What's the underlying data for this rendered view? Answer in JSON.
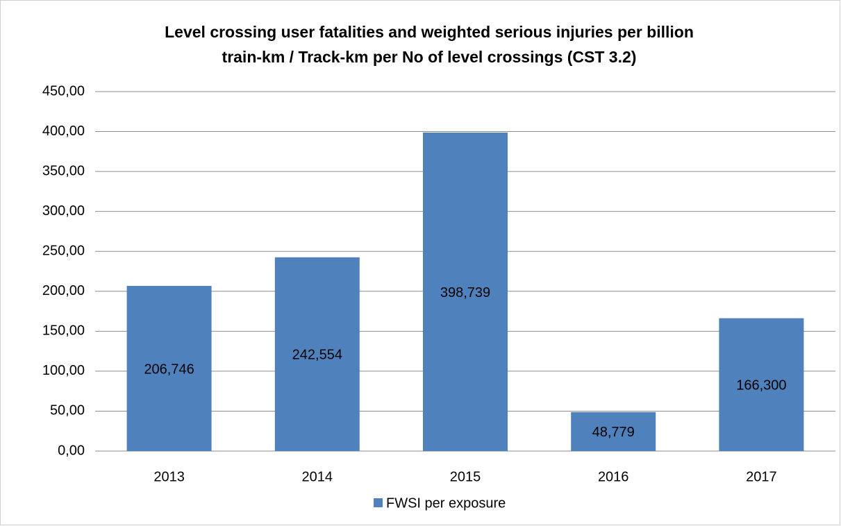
{
  "chart_data": {
    "type": "bar",
    "title": [
      "Level crossing user fatalities and weighted serious injuries per billion",
      "train-km / Track-km per No of level crossings (CST 3.2)"
    ],
    "categories": [
      "2013",
      "2014",
      "2015",
      "2016",
      "2017"
    ],
    "series": [
      {
        "name": "FWSI per exposure",
        "color": "#4f81bd",
        "values": [
          206.746,
          242.554,
          398.739,
          48.779,
          166.3
        ],
        "value_labels": [
          "206,746",
          "242,554",
          "398,739",
          "48,779",
          "166,300"
        ]
      }
    ],
    "ylim": [
      0,
      450
    ],
    "yticks": [
      {
        "value": 0,
        "label": "0,00"
      },
      {
        "value": 50,
        "label": "50,00"
      },
      {
        "value": 100,
        "label": "100,00"
      },
      {
        "value": 150,
        "label": "150,00"
      },
      {
        "value": 200,
        "label": "200,00"
      },
      {
        "value": 250,
        "label": "250,00"
      },
      {
        "value": 300,
        "label": "300,00"
      },
      {
        "value": 350,
        "label": "350,00"
      },
      {
        "value": 400,
        "label": "400,00"
      },
      {
        "value": 450,
        "label": "450,00"
      }
    ],
    "grid": true,
    "legend": "bottom"
  }
}
